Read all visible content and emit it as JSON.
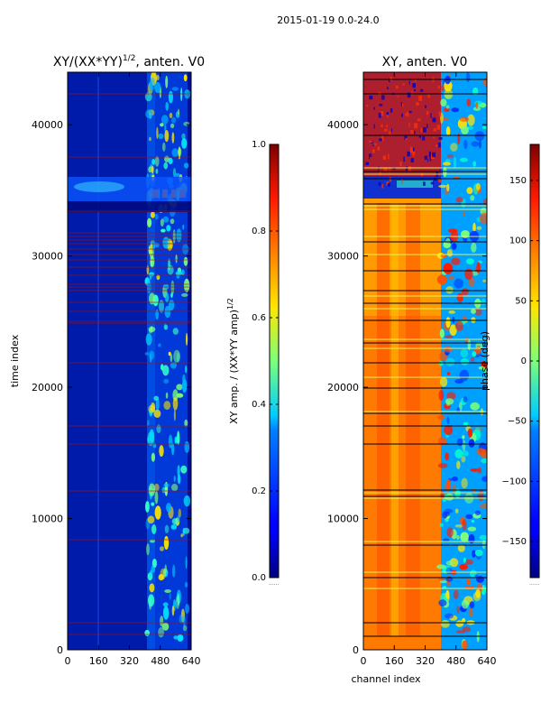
{
  "figure": {
    "suptitle": "2015-01-19 0.0-24.0",
    "cbar_dots": "......"
  },
  "chart_data": [
    {
      "type": "heatmap",
      "title": "XY/(XX*YY)",
      "title_sup": "1/2",
      "title_suffix": ", anten. V0",
      "xlabel": "",
      "ylabel": "time index",
      "xlim": [
        0,
        640
      ],
      "ylim": [
        0,
        44000
      ],
      "xticks": [
        0,
        160,
        320,
        480,
        640
      ],
      "xtick_labels": [
        "0",
        "160",
        "320",
        "480",
        "640"
      ],
      "yticks": [
        0,
        10000,
        20000,
        30000,
        40000
      ],
      "ytick_labels": [
        "0",
        "10000",
        "20000",
        "30000",
        "40000"
      ],
      "colormap": "jet",
      "colorbar": {
        "label": "XY amp. / (XX*YY amp)",
        "label_sup": "1/2",
        "range": [
          0.0,
          1.0
        ],
        "ticks": [
          0.0,
          0.2,
          0.4,
          0.6,
          0.8,
          1.0
        ],
        "tick_labels": [
          "0.0",
          "0.2",
          "0.4",
          "0.6",
          "0.8",
          "1.0"
        ]
      }
    },
    {
      "type": "heatmap",
      "title": "XY, anten. V0",
      "xlabel": "channel index",
      "ylabel": "",
      "xlim": [
        0,
        640
      ],
      "ylim": [
        0,
        44000
      ],
      "xticks": [
        0,
        160,
        320,
        480,
        640
      ],
      "xtick_labels": [
        "0",
        "160",
        "320",
        "480",
        "640"
      ],
      "yticks": [
        0,
        10000,
        20000,
        30000,
        40000
      ],
      "ytick_labels": [
        "0",
        "10000",
        "20000",
        "30000",
        "40000"
      ],
      "colormap": "jet",
      "colorbar": {
        "label": "phase (deg)",
        "range": [
          -180,
          180
        ],
        "ticks": [
          -150,
          -100,
          -50,
          0,
          50,
          100,
          150
        ],
        "tick_labels": [
          "−150",
          "−100",
          "−50",
          "0",
          "50",
          "100",
          "150"
        ]
      }
    }
  ]
}
